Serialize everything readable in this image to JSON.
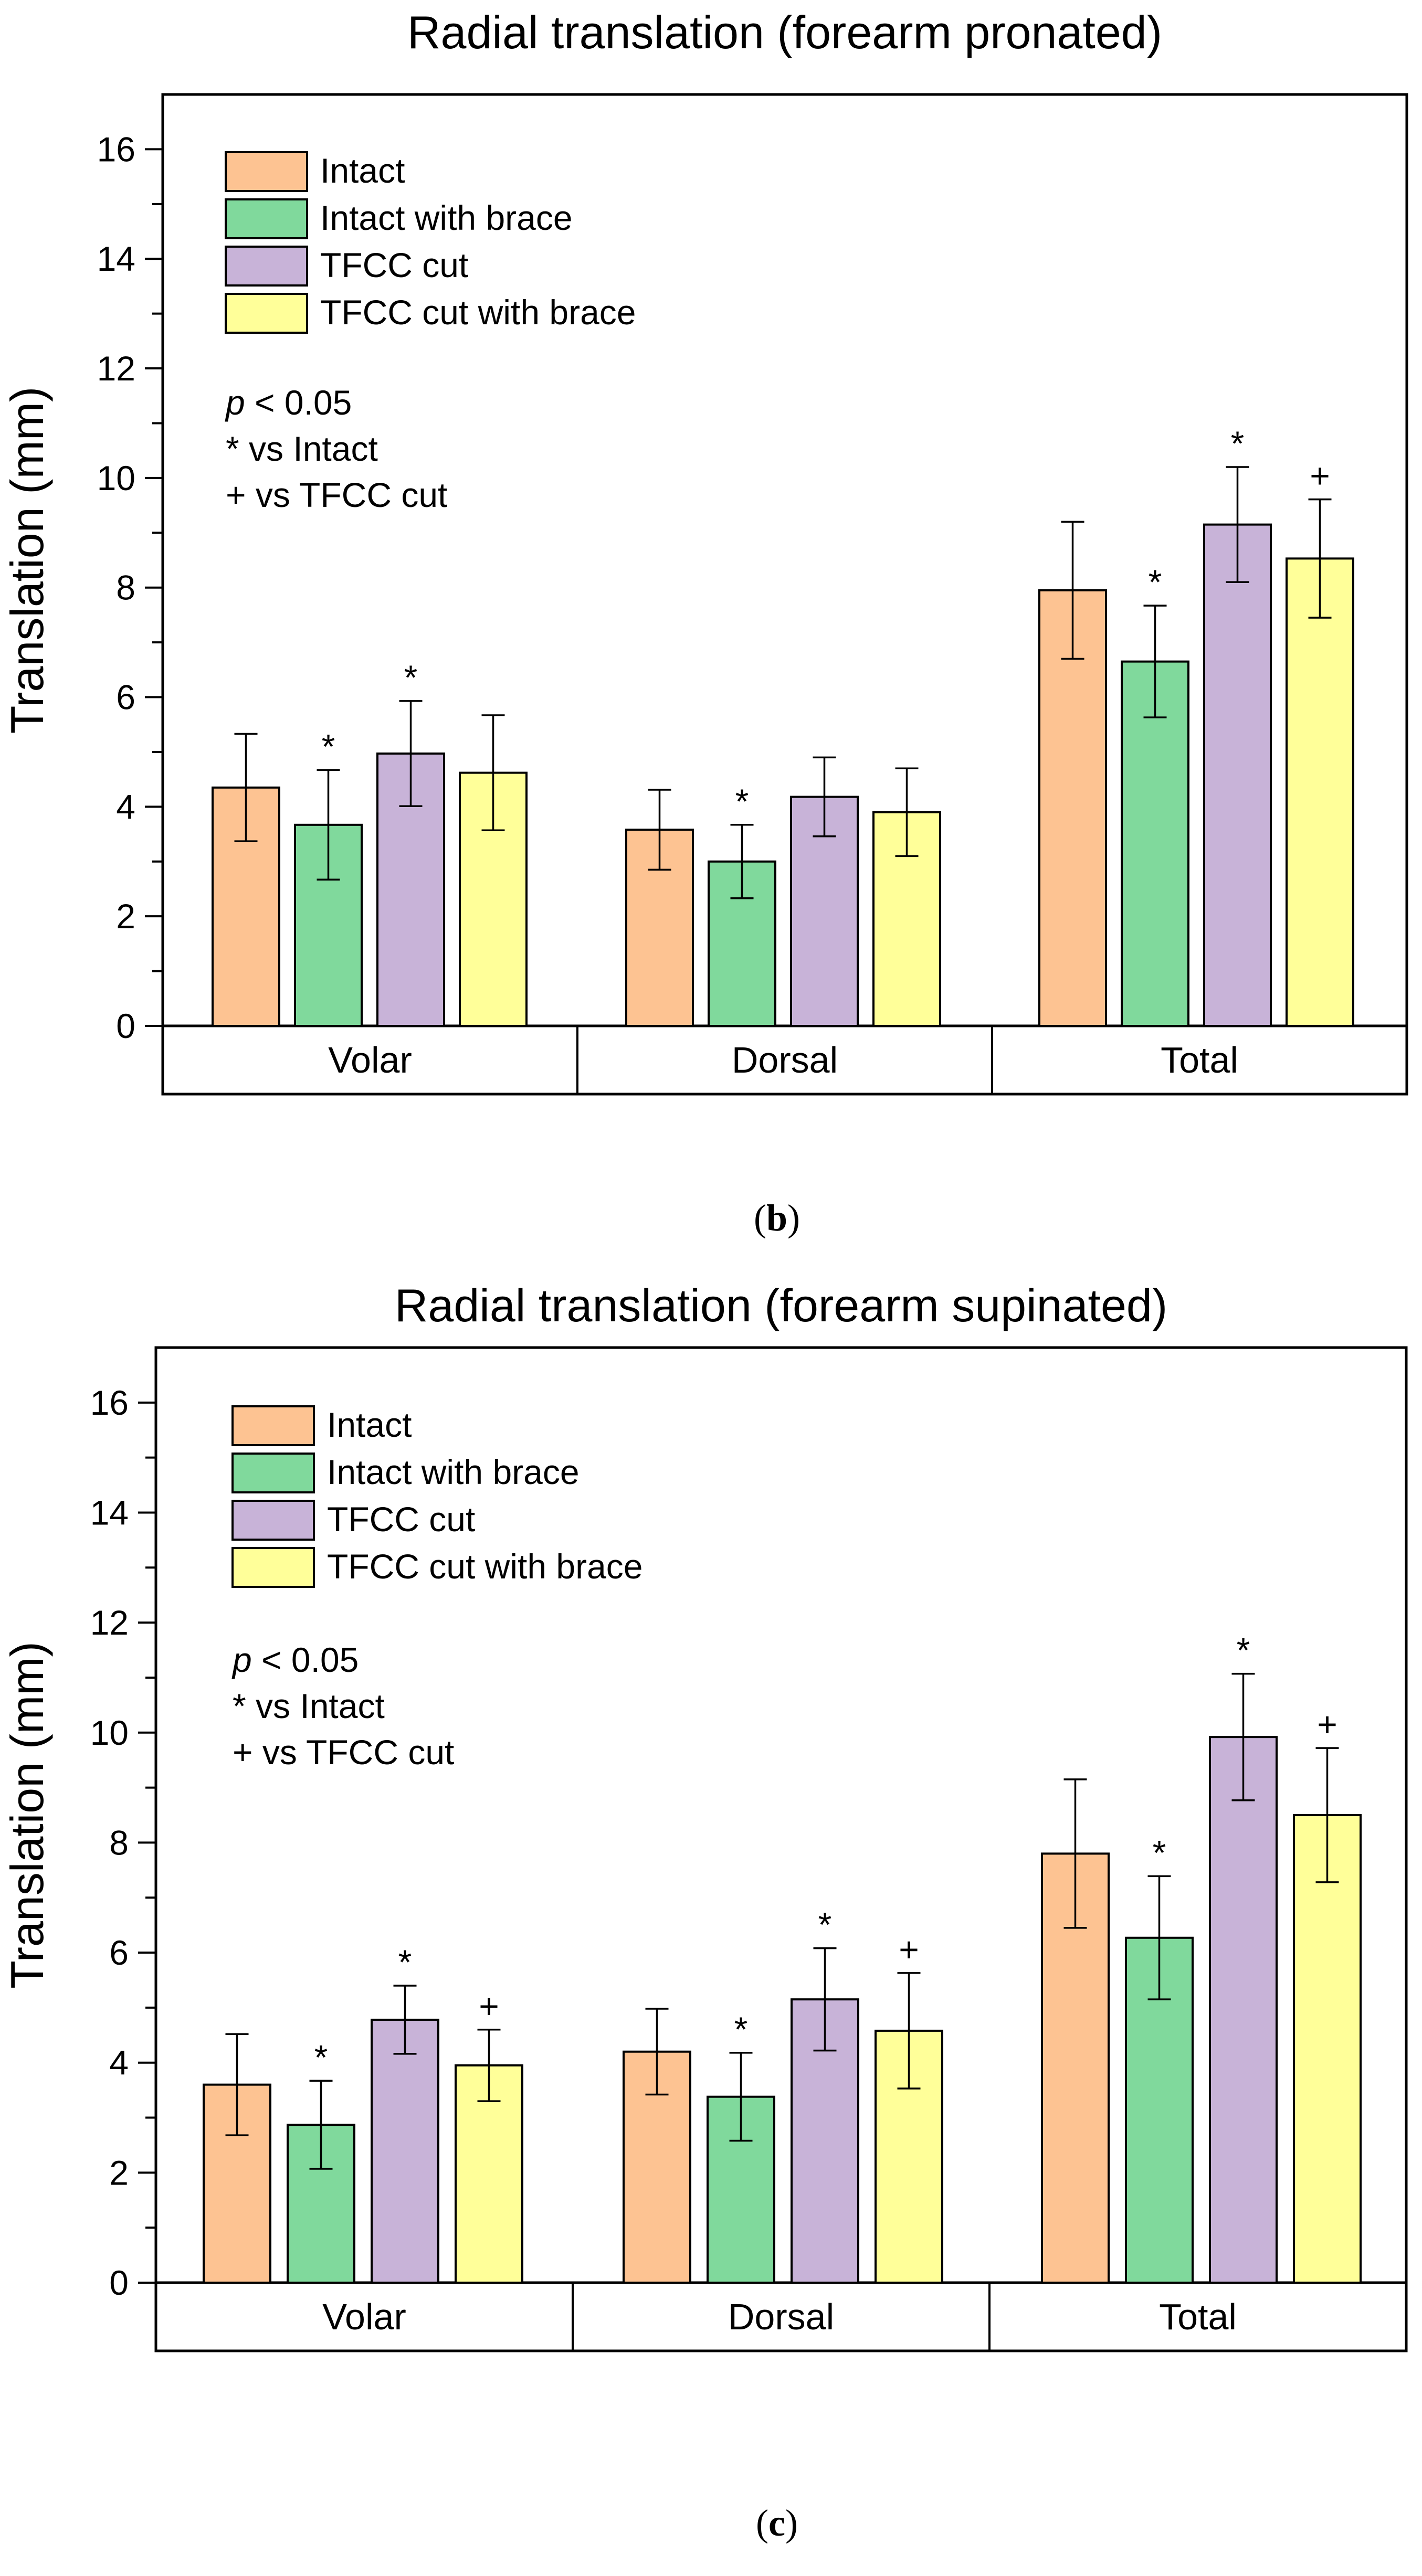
{
  "chart_data": [
    {
      "type": "bar",
      "title": "Radial translation (forearm pronated)",
      "ylabel": "Translation (mm)",
      "xlabel": "",
      "ylim": [
        0,
        17
      ],
      "yticks": [
        0,
        2,
        4,
        6,
        8,
        10,
        12,
        14,
        16
      ],
      "categories": [
        "Volar",
        "Dorsal",
        "Total"
      ],
      "series": [
        {
          "name": "Intact",
          "color": "#FDC392",
          "values": [
            4.35,
            3.58,
            7.95
          ],
          "errors": [
            0.98,
            0.73,
            1.25
          ],
          "marks": [
            "",
            "",
            ""
          ]
        },
        {
          "name": "Intact with brace",
          "color": "#80D99C",
          "values": [
            3.67,
            3.0,
            6.65
          ],
          "errors": [
            1.0,
            0.67,
            1.02
          ],
          "marks": [
            "*",
            "*",
            "*"
          ]
        },
        {
          "name": "TFCC cut",
          "color": "#C8B3D8",
          "values": [
            4.97,
            4.18,
            9.15
          ],
          "errors": [
            0.96,
            0.72,
            1.05
          ],
          "marks": [
            "*",
            "",
            "*"
          ]
        },
        {
          "name": "TFCC cut with brace",
          "color": "#FFFF99",
          "values": [
            4.62,
            3.9,
            8.53
          ],
          "errors": [
            1.05,
            0.8,
            1.08
          ],
          "marks": [
            "",
            "",
            "+"
          ]
        }
      ],
      "annotations": {
        "p_symbol": "p",
        "p_rest": " < 0.05",
        "line2": "* vs Intact",
        "line3": "+ vs TFCC cut"
      },
      "caption": "b"
    },
    {
      "type": "bar",
      "title": "Radial translation (forearm supinated)",
      "ylabel": "Translation (mm)",
      "xlabel": "",
      "ylim": [
        0,
        17
      ],
      "yticks": [
        0,
        2,
        4,
        6,
        8,
        10,
        12,
        14,
        16
      ],
      "categories": [
        "Volar",
        "Dorsal",
        "Total"
      ],
      "series": [
        {
          "name": "Intact",
          "color": "#FDC392",
          "values": [
            3.6,
            4.2,
            7.8
          ],
          "errors": [
            0.92,
            0.78,
            1.35
          ],
          "marks": [
            "",
            "",
            ""
          ]
        },
        {
          "name": "Intact with brace",
          "color": "#80D99C",
          "values": [
            2.87,
            3.38,
            6.27
          ],
          "errors": [
            0.8,
            0.8,
            1.12
          ],
          "marks": [
            "*",
            "*",
            "*"
          ]
        },
        {
          "name": "TFCC cut",
          "color": "#C8B3D8",
          "values": [
            4.78,
            5.15,
            9.92
          ],
          "errors": [
            0.62,
            0.93,
            1.15
          ],
          "marks": [
            "*",
            "*",
            "*"
          ]
        },
        {
          "name": "TFCC cut with brace",
          "color": "#FFFF99",
          "values": [
            3.95,
            4.58,
            8.5
          ],
          "errors": [
            0.65,
            1.05,
            1.22
          ],
          "marks": [
            "+",
            "+",
            "+"
          ]
        }
      ],
      "annotations": {
        "p_symbol": "p",
        "p_rest": " < 0.05",
        "line2": "* vs Intact",
        "line3": "+ vs TFCC cut"
      },
      "caption": "c"
    }
  ]
}
